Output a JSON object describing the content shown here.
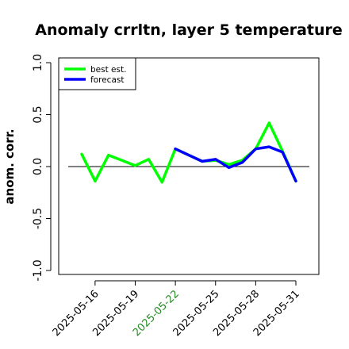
{
  "chart_data": {
    "type": "line",
    "title": "Anomaly crrltn, layer 5 temperature",
    "ylabel": "anom. corr.",
    "xlabel": "",
    "ylim": [
      -1.0,
      1.0
    ],
    "yticks": [
      -1.0,
      -0.5,
      0.0,
      0.5,
      1.0
    ],
    "ytick_labels": [
      "-1.0",
      "-0.5",
      "0.0",
      "0.5",
      "1.0"
    ],
    "x": [
      "2025-05-15",
      "2025-05-16",
      "2025-05-17",
      "2025-05-18",
      "2025-05-19",
      "2025-05-20",
      "2025-05-21",
      "2025-05-22",
      "2025-05-23",
      "2025-05-24",
      "2025-05-25",
      "2025-05-26",
      "2025-05-27",
      "2025-05-28",
      "2025-05-29",
      "2025-05-30",
      "2025-05-31"
    ],
    "xticks": [
      "2025-05-16",
      "2025-05-19",
      "2025-05-22",
      "2025-05-25",
      "2025-05-28",
      "2025-05-31"
    ],
    "xtick_colors": [
      "#000000",
      "#000000",
      "#228B22",
      "#000000",
      "#000000",
      "#000000"
    ],
    "reference_line": 0.0,
    "legend_position": "top-left",
    "grid": false,
    "series": [
      {
        "name": "best est.",
        "color": "#00ff00",
        "values": [
          0.12,
          -0.14,
          0.11,
          0.06,
          0.01,
          0.07,
          -0.15,
          0.17,
          0.11,
          0.05,
          0.06,
          0.02,
          0.06,
          0.17,
          0.42,
          0.15,
          -0.14
        ]
      },
      {
        "name": "forecast",
        "color": "#0000ff",
        "values": [
          null,
          null,
          null,
          null,
          null,
          null,
          null,
          0.17,
          0.11,
          0.05,
          0.07,
          -0.01,
          0.04,
          0.17,
          0.19,
          0.14,
          -0.14
        ]
      }
    ]
  }
}
